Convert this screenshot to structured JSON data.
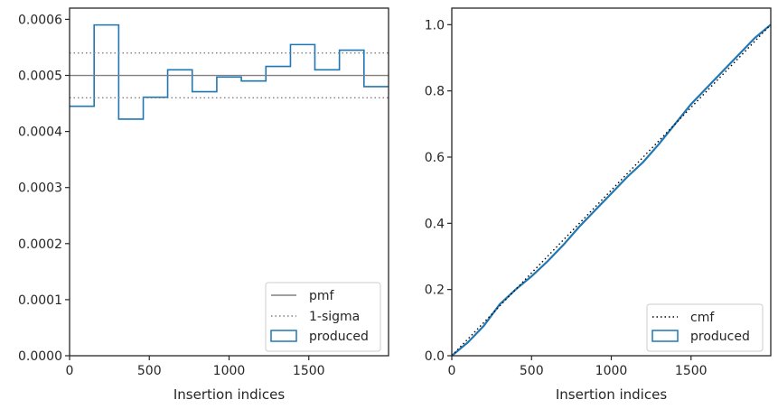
{
  "chart_data": [
    {
      "type": "histogram",
      "xlabel": "Insertion indices",
      "ylabel": "",
      "xlim": [
        0,
        2000
      ],
      "ylim": [
        0,
        0.00062
      ],
      "x_ticks": [
        0,
        500,
        1000,
        1500
      ],
      "x_tick_labels": [
        "0",
        "500",
        "1000",
        "1500"
      ],
      "y_ticks": [
        0,
        0.0001,
        0.0002,
        0.0003,
        0.0004,
        0.0005,
        0.0006
      ],
      "y_tick_labels": [
        "0.0000",
        "0.0001",
        "0.0002",
        "0.0003",
        "0.0004",
        "0.0005",
        "0.0006"
      ],
      "grid": false,
      "legend_position": "lower-right",
      "pmf": 0.0005,
      "sigma_band": [
        0.00046,
        0.00054
      ],
      "bin_edges": [
        0,
        154,
        308,
        462,
        615,
        769,
        923,
        1077,
        1231,
        1385,
        1538,
        1692,
        1846,
        2000
      ],
      "produced": [
        0.000445,
        0.00059,
        0.000422,
        0.000461,
        0.00051,
        0.000471,
        0.000497,
        0.00049,
        0.000516,
        0.000555,
        0.00051,
        0.000545,
        0.00048
      ],
      "series": [
        {
          "name": "pmf",
          "style": "solid",
          "color": "#808080"
        },
        {
          "name": "1-sigma",
          "style": "dotted",
          "color": "#808080"
        },
        {
          "name": "produced",
          "style": "step",
          "color": "#1f77b4"
        }
      ]
    },
    {
      "type": "line",
      "xlabel": "Insertion indices",
      "ylabel": "",
      "xlim": [
        0,
        2000
      ],
      "ylim": [
        0,
        1.05
      ],
      "x_ticks": [
        0,
        500,
        1000,
        1500
      ],
      "x_tick_labels": [
        "0",
        "500",
        "1000",
        "1500"
      ],
      "y_ticks": [
        0,
        0.2,
        0.4,
        0.6,
        0.8,
        1.0
      ],
      "y_tick_labels": [
        "0.0",
        "0.2",
        "0.4",
        "0.6",
        "0.8",
        "1.0"
      ],
      "grid": false,
      "legend_position": "lower-right",
      "cmf": {
        "x": [
          0,
          2000
        ],
        "y": [
          0,
          1.0
        ]
      },
      "produced": {
        "x": [
          0,
          100,
          200,
          300,
          400,
          500,
          600,
          700,
          800,
          900,
          1000,
          1100,
          1200,
          1300,
          1400,
          1500,
          1600,
          1700,
          1800,
          1900,
          2000
        ],
        "y": [
          0,
          0.04,
          0.09,
          0.155,
          0.2,
          0.24,
          0.285,
          0.335,
          0.39,
          0.44,
          0.49,
          0.54,
          0.585,
          0.64,
          0.7,
          0.76,
          0.81,
          0.86,
          0.91,
          0.96,
          1.0
        ]
      },
      "series": [
        {
          "name": "cmf",
          "style": "dotted",
          "color": "#000000"
        },
        {
          "name": "produced",
          "style": "line",
          "color": "#1f77b4"
        }
      ]
    }
  ]
}
